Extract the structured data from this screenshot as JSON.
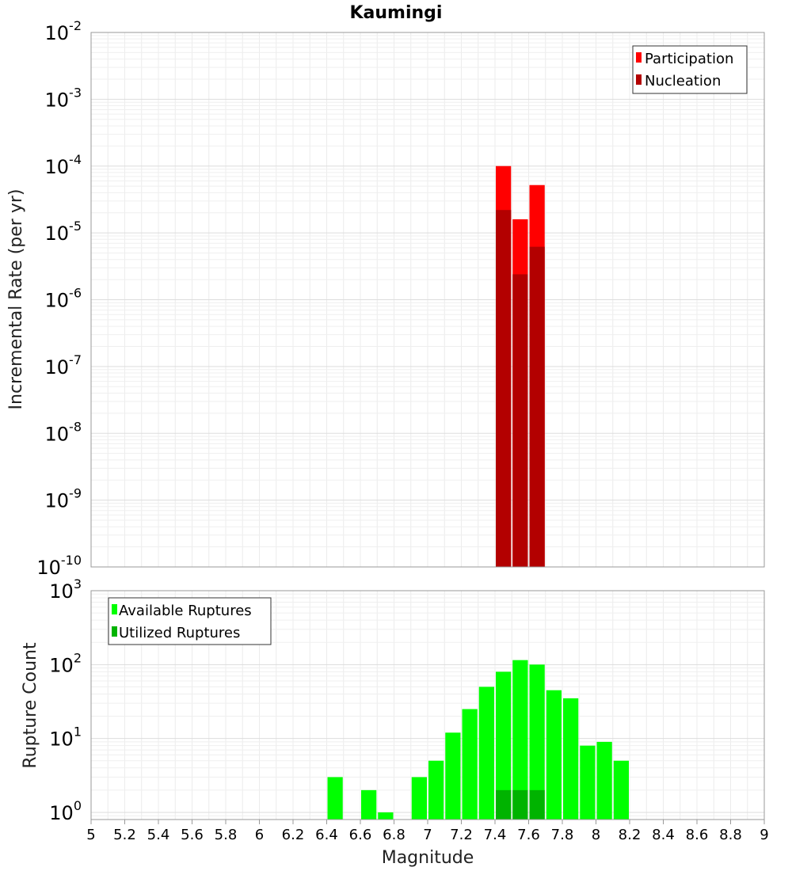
{
  "chart_data": [
    {
      "type": "bar",
      "title": "Kaumingi",
      "ylabel": "Incremental Rate (per yr)",
      "xlabel": "",
      "yscale": "log",
      "ylim": [
        1e-10,
        0.01
      ],
      "xlim": [
        5,
        9
      ],
      "y_tick_exponents": [
        "-2",
        "-3",
        "-4",
        "-5",
        "-6",
        "-7",
        "-8",
        "-9",
        "-10"
      ],
      "y_tick_base": "10",
      "legend": {
        "placement": "top-right",
        "entries": [
          "Participation",
          "Nucleation"
        ]
      },
      "series": [
        {
          "name": "Participation",
          "color": "#ff0000",
          "x": [
            7.45,
            7.55,
            7.65
          ],
          "values": [
            0.0001,
            1.6e-05,
            5.2e-05
          ]
        },
        {
          "name": "Nucleation",
          "color": "#b30000",
          "x": [
            7.45,
            7.55,
            7.65
          ],
          "values": [
            2.2e-05,
            2.4e-06,
            6.2e-06
          ]
        }
      ]
    },
    {
      "type": "bar",
      "ylabel": "Rupture Count",
      "xlabel": "Magnitude",
      "yscale": "log",
      "ylim": [
        0.8,
        1000
      ],
      "xlim": [
        5,
        9
      ],
      "y_tick_exponents": [
        "3",
        "2",
        "1",
        "0"
      ],
      "y_tick_base": "10",
      "x_tick_labels": [
        "5",
        "5.2",
        "5.4",
        "5.6",
        "5.8",
        "6",
        "6.2",
        "6.4",
        "6.6",
        "6.8",
        "7",
        "7.2",
        "7.4",
        "7.6",
        "7.8",
        "8",
        "8.2",
        "8.4",
        "8.6",
        "8.8",
        "9"
      ],
      "legend": {
        "placement": "top-left",
        "entries": [
          "Available Ruptures",
          "Utilized Ruptures"
        ]
      },
      "series": [
        {
          "name": "Available Ruptures",
          "color": "#00ff00",
          "x": [
            6.45,
            6.65,
            6.75,
            6.95,
            7.05,
            7.15,
            7.25,
            7.35,
            7.45,
            7.55,
            7.65,
            7.75,
            7.85,
            7.95,
            8.05,
            8.15
          ],
          "values": [
            3,
            2,
            1,
            3,
            5,
            12,
            25,
            50,
            80,
            115,
            100,
            45,
            35,
            8,
            9,
            5
          ]
        },
        {
          "name": "Utilized Ruptures",
          "color": "#00b300",
          "x": [
            7.45,
            7.55,
            7.65
          ],
          "values": [
            2,
            2,
            2
          ]
        }
      ]
    }
  ]
}
